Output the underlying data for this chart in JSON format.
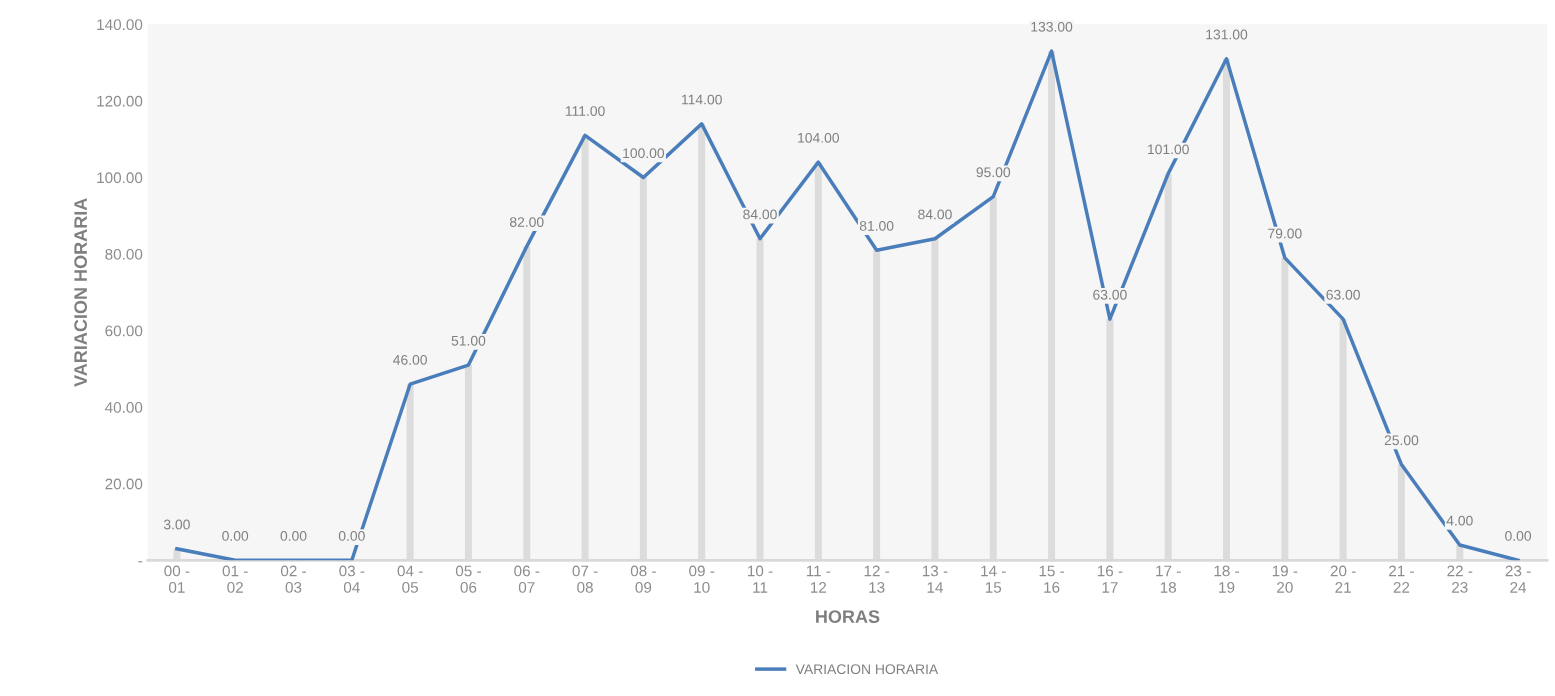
{
  "chart_data": {
    "type": "line",
    "xlabel": "HORAS",
    "ylabel": "VARIACION HORARIA",
    "categories": [
      "00 -\n01",
      "01 -\n02",
      "02 -\n03",
      "03 -\n04",
      "04 -\n05",
      "05 -\n06",
      "06 -\n07",
      "07 -\n08",
      "08 -\n09",
      "09 -\n10",
      "10 -\n11",
      "11 -\n12",
      "12 -\n13",
      "13 -\n14",
      "14 -\n15",
      "15 -\n16",
      "16 -\n17",
      "17 -\n18",
      "18 -\n19",
      "19 -\n20",
      "20 -\n21",
      "21 -\n22",
      "22 -\n23",
      "23 -\n24"
    ],
    "series": [
      {
        "type": "bar",
        "color": "#dcdcdc",
        "values": [
          3,
          0,
          0,
          0,
          46,
          51,
          82,
          111,
          100,
          114,
          84,
          104,
          81,
          84,
          95,
          133,
          63,
          101,
          131,
          79,
          63,
          25,
          4,
          0
        ]
      },
      {
        "name": "VARIACION HORARIA",
        "color": "#4a7ebb",
        "values": [
          3,
          0,
          0,
          0,
          46,
          51,
          82,
          111,
          100,
          114,
          84,
          104,
          81,
          84,
          95,
          133,
          63,
          101,
          131,
          79,
          63,
          25,
          4,
          0
        ],
        "value_labels": [
          "3.00",
          "0.00",
          "0.00",
          "0.00",
          "46.00",
          "51.00",
          "82.00",
          "111.00",
          "100.00",
          "114.00",
          "84.00",
          "104.00",
          "81.00",
          "84.00",
          "95.00",
          "133.00",
          "63.00",
          "101.00",
          "131.00",
          "79.00",
          "63.00",
          "25.00",
          "4.00",
          "0.00"
        ]
      }
    ],
    "ylim": [
      0,
      140
    ],
    "yticks": [
      {
        "value": 0,
        "label": "-"
      },
      {
        "value": 20,
        "label": "20.00"
      },
      {
        "value": 40,
        "label": "40.00"
      },
      {
        "value": 60,
        "label": "60.00"
      },
      {
        "value": 80,
        "label": "80.00"
      },
      {
        "value": 100,
        "label": "100.00"
      },
      {
        "value": 120,
        "label": "120.00"
      },
      {
        "value": 140,
        "label": "140.00"
      }
    ],
    "grid": false,
    "legend": "bottom",
    "marker": "none",
    "line_style": "solid"
  }
}
